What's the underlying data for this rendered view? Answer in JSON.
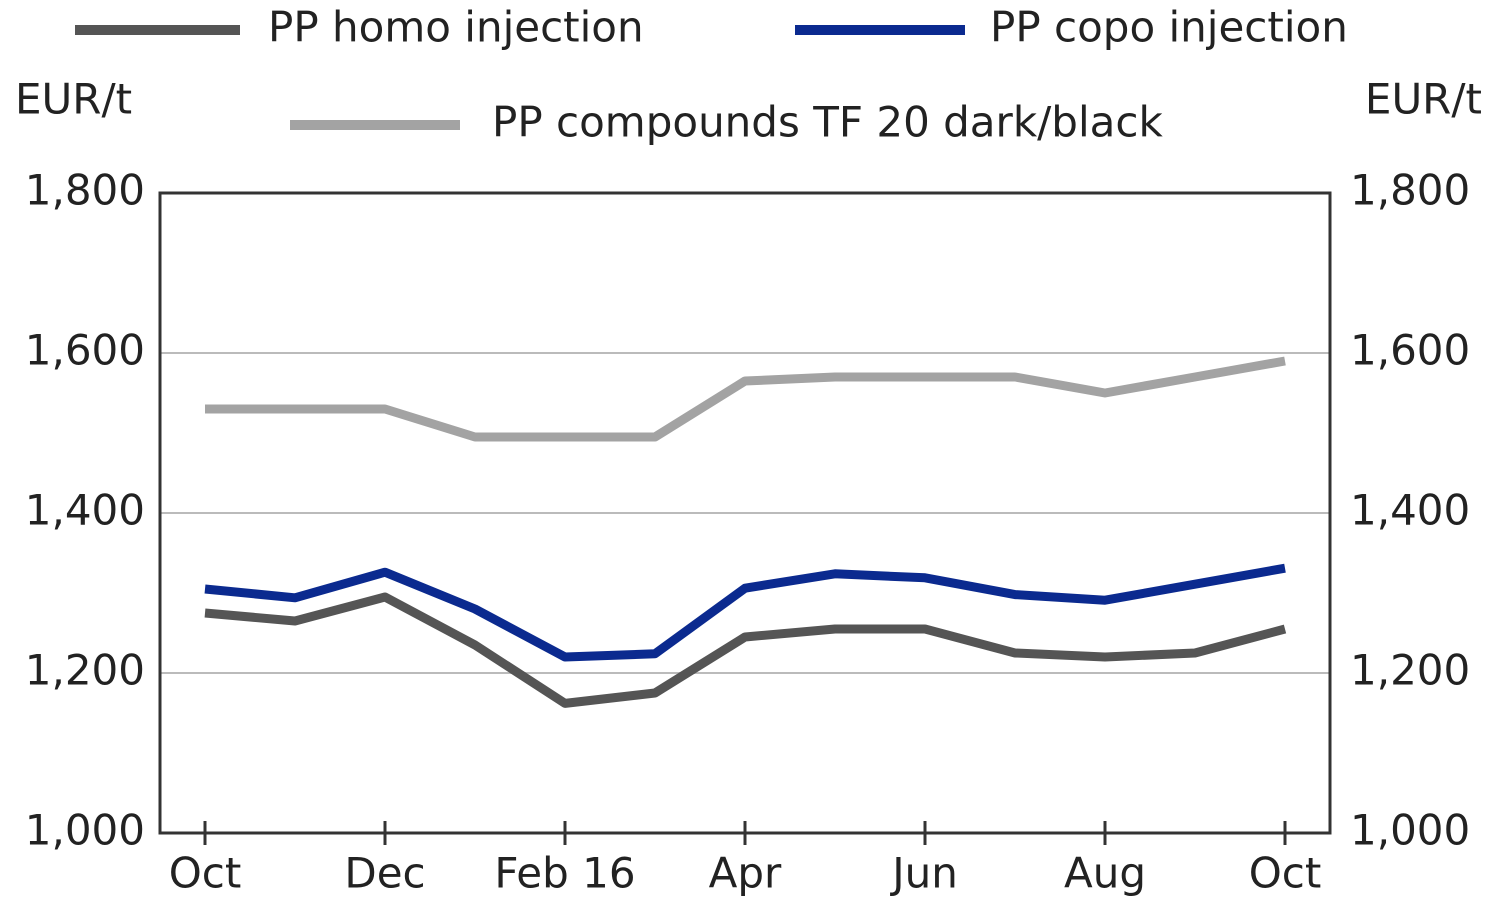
{
  "chart_data": {
    "type": "line",
    "y_label": "EUR/t",
    "y2_label": "EUR/t",
    "categories": [
      "Oct",
      null,
      "Dec",
      null,
      "Feb 16",
      null,
      "Apr",
      null,
      "Jun",
      null,
      "Aug",
      null,
      "Oct"
    ],
    "series": [
      {
        "name": "PP homo injection",
        "color": "#555555",
        "values": [
          1275,
          1265,
          1295,
          1235,
          1162,
          1175,
          1245,
          1255,
          1255,
          1225,
          1220,
          1225,
          1255
        ]
      },
      {
        "name": "PP copo injection",
        "color": "#0b2a8f",
        "values": [
          1305,
          1294,
          1326,
          1280,
          1220,
          1224,
          1306,
          1324,
          1319,
          1298,
          1291,
          1311,
          1331
        ]
      },
      {
        "name": "PP compounds TF 20 dark/black",
        "color": "#a3a3a3",
        "values": [
          1530,
          1530,
          1530,
          1495,
          1495,
          1495,
          1565,
          1570,
          1570,
          1570,
          1550,
          1570,
          1590
        ]
      }
    ],
    "ylim": [
      1000,
      1800
    ],
    "yticks": [
      {
        "value": 1000,
        "label": "1,000"
      },
      {
        "value": 1200,
        "label": "1,200"
      },
      {
        "value": 1400,
        "label": "1,400"
      },
      {
        "value": 1600,
        "label": "1,600"
      },
      {
        "value": 1800,
        "label": "1,800"
      }
    ],
    "y2lim": [
      1000,
      1800
    ],
    "y2ticks": [
      {
        "value": 1000,
        "label": "1,000"
      },
      {
        "value": 1200,
        "label": "1,200"
      },
      {
        "value": 1400,
        "label": "1,400"
      },
      {
        "value": 1600,
        "label": "1,600"
      },
      {
        "value": 1800,
        "label": "1,800"
      }
    ],
    "grid": true
  }
}
